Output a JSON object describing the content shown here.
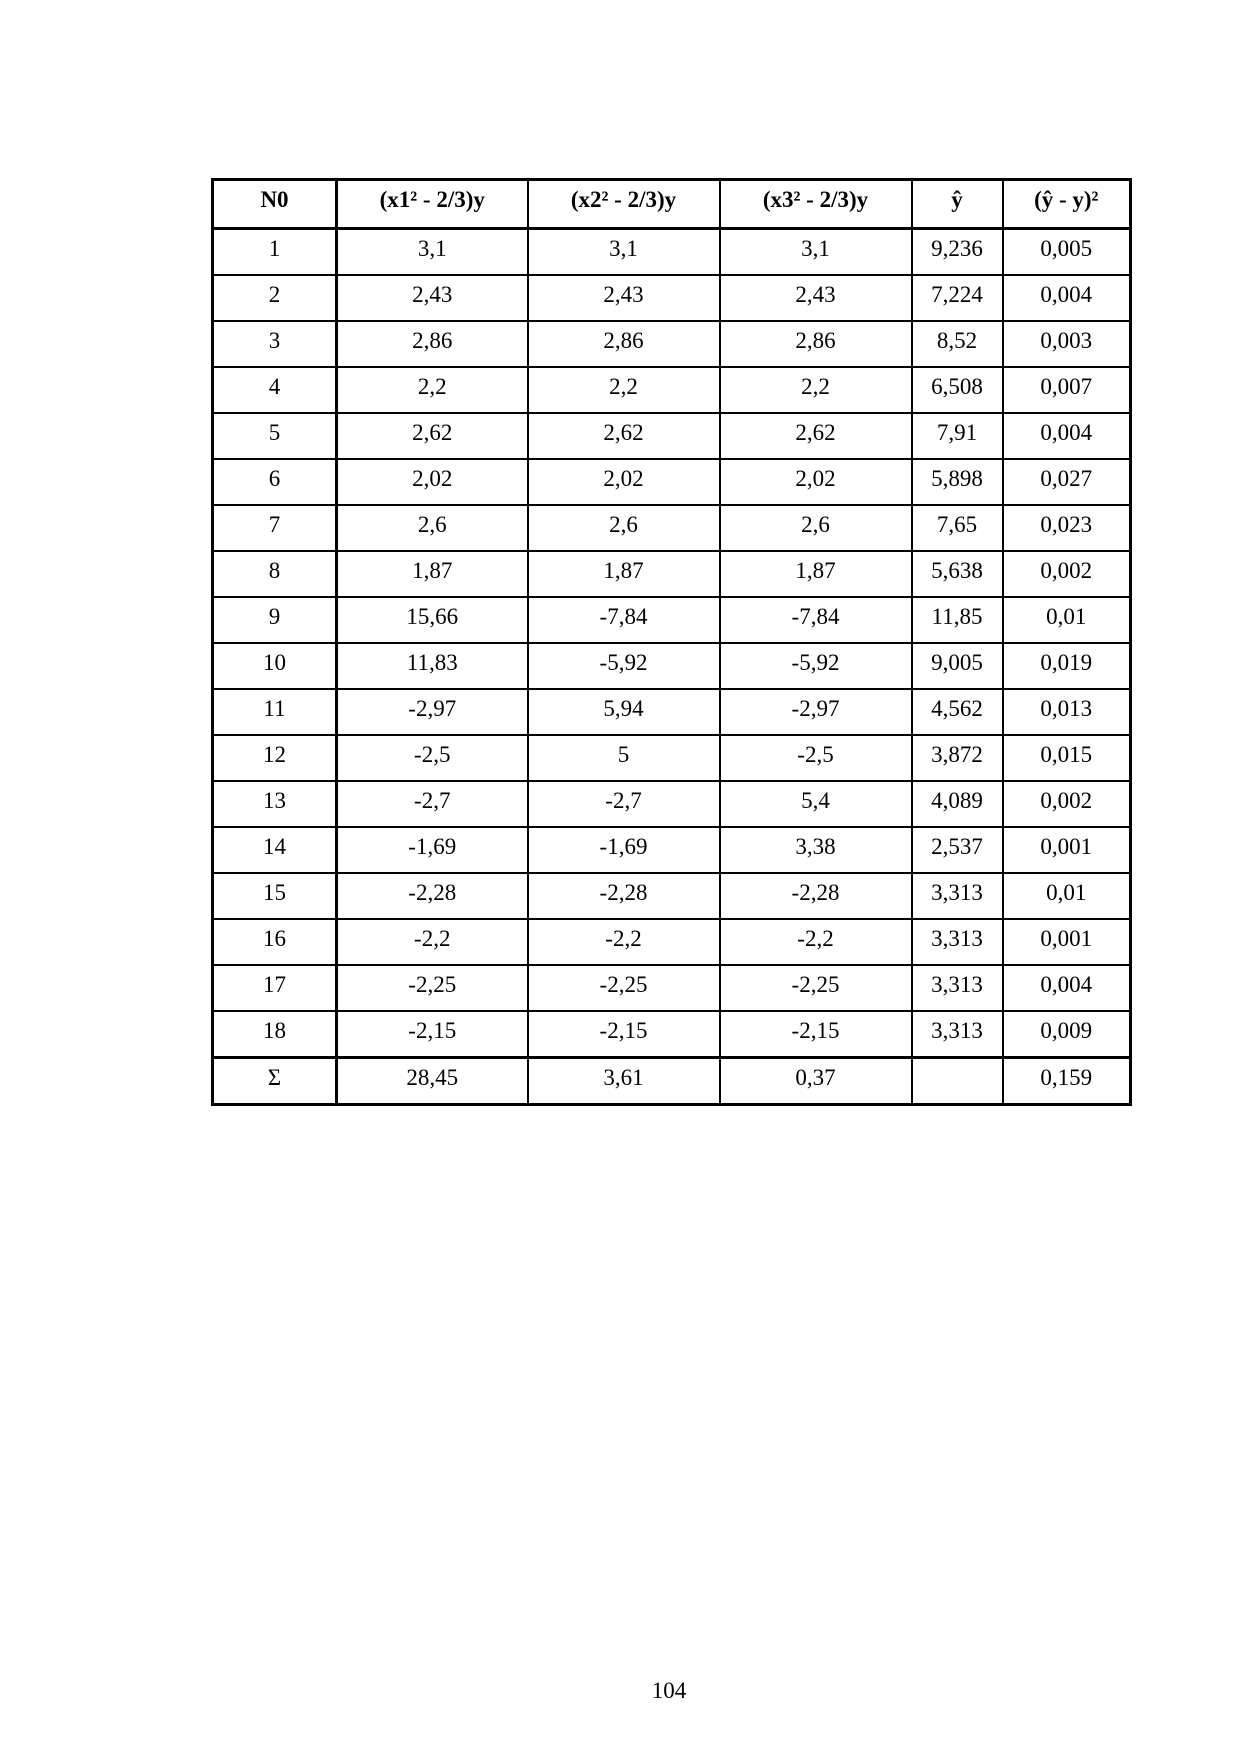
{
  "table": {
    "headers": [
      "N0",
      "(x1² - 2/3)y",
      "(x2² - 2/3)y",
      "(x3² - 2/3)y",
      "ŷ",
      "(ŷ - y)²"
    ],
    "rows": [
      [
        "1",
        "3,1",
        "3,1",
        "3,1",
        "9,236",
        "0,005"
      ],
      [
        "2",
        "2,43",
        "2,43",
        "2,43",
        "7,224",
        "0,004"
      ],
      [
        "3",
        "2,86",
        "2,86",
        "2,86",
        "8,52",
        "0,003"
      ],
      [
        "4",
        "2,2",
        "2,2",
        "2,2",
        "6,508",
        "0,007"
      ],
      [
        "5",
        "2,62",
        "2,62",
        "2,62",
        "7,91",
        "0,004"
      ],
      [
        "6",
        "2,02",
        "2,02",
        "2,02",
        "5,898",
        "0,027"
      ],
      [
        "7",
        "2,6",
        "2,6",
        "2,6",
        "7,65",
        "0,023"
      ],
      [
        "8",
        "1,87",
        "1,87",
        "1,87",
        "5,638",
        "0,002"
      ],
      [
        "9",
        "15,66",
        "-7,84",
        "-7,84",
        "11,85",
        "0,01"
      ],
      [
        "10",
        "11,83",
        "-5,92",
        "-5,92",
        "9,005",
        "0,019"
      ],
      [
        "11",
        "-2,97",
        "5,94",
        "-2,97",
        "4,562",
        "0,013"
      ],
      [
        "12",
        "-2,5",
        "5",
        "-2,5",
        "3,872",
        "0,015"
      ],
      [
        "13",
        "-2,7",
        "-2,7",
        "5,4",
        "4,089",
        "0,002"
      ],
      [
        "14",
        "-1,69",
        "-1,69",
        "3,38",
        "2,537",
        "0,001"
      ],
      [
        "15",
        "-2,28",
        "-2,28",
        "-2,28",
        "3,313",
        "0,01"
      ],
      [
        "16",
        "-2,2",
        "-2,2",
        "-2,2",
        "3,313",
        "0,001"
      ],
      [
        "17",
        "-2,25",
        "-2,25",
        "-2,25",
        "3,313",
        "0,004"
      ],
      [
        "18",
        "-2,15",
        "-2,15",
        "-2,15",
        "3,313",
        "0,009"
      ]
    ],
    "sum_row": [
      "Σ",
      "28,45",
      "3,61",
      "0,37",
      "",
      "0,159"
    ]
  },
  "page_number": "104"
}
